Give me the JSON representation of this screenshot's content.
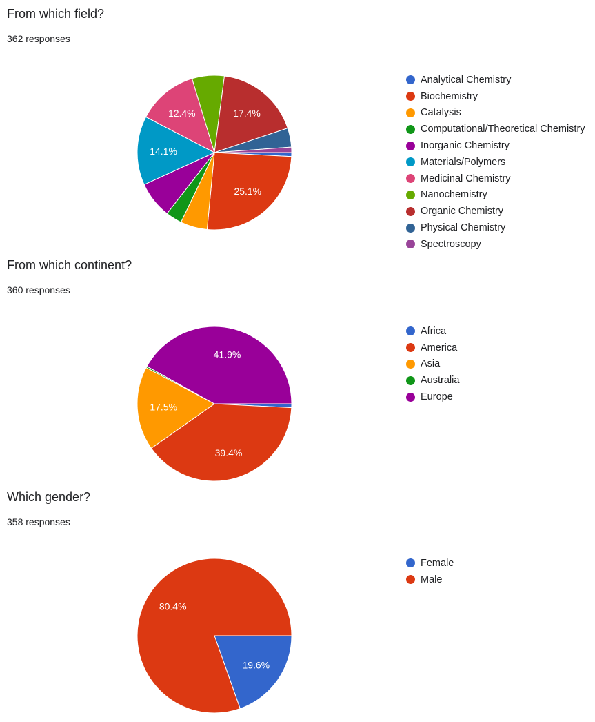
{
  "chart_data": [
    {
      "type": "pie",
      "title": "From which field?",
      "subtitle": "362 responses",
      "legend_position": "right",
      "series": [
        {
          "name": "Analytical Chemistry",
          "value": 0.8,
          "color": "#3366cc"
        },
        {
          "name": "Biochemistry",
          "value": 25.1,
          "label": "25.1%",
          "color": "#dc3912"
        },
        {
          "name": "Catalysis",
          "value": 5.5,
          "color": "#ff9900"
        },
        {
          "name": "Computational/Theoretical Chemistry",
          "value": 3.3,
          "color": "#109618"
        },
        {
          "name": "Inorganic Chemistry",
          "value": 7.5,
          "color": "#990099"
        },
        {
          "name": "Materials/Polymers",
          "value": 14.1,
          "label": "14.1%",
          "color": "#0099c6"
        },
        {
          "name": "Medicinal Chemistry",
          "value": 12.4,
          "label": "12.4%",
          "color": "#dd4477"
        },
        {
          "name": "Nanochemistry",
          "value": 6.6,
          "color": "#66aa00"
        },
        {
          "name": "Organic Chemistry",
          "value": 17.4,
          "label": "17.4%",
          "color": "#b82e2e"
        },
        {
          "name": "Physical Chemistry",
          "value": 3.9,
          "color": "#316395"
        },
        {
          "name": "Spectroscopy",
          "value": 1.1,
          "color": "#994499"
        }
      ]
    },
    {
      "type": "pie",
      "title": "From which continent?",
      "subtitle": "360 responses",
      "legend_position": "right",
      "series": [
        {
          "name": "Africa",
          "value": 0.8,
          "color": "#3366cc"
        },
        {
          "name": "America",
          "value": 39.4,
          "label": "39.4%",
          "color": "#dc3912"
        },
        {
          "name": "Asia",
          "value": 17.5,
          "label": "17.5%",
          "color": "#ff9900"
        },
        {
          "name": "Australia",
          "value": 0.3,
          "color": "#109618"
        },
        {
          "name": "Europe",
          "value": 41.9,
          "label": "41.9%",
          "color": "#990099"
        }
      ]
    },
    {
      "type": "pie",
      "title": "Which gender?",
      "subtitle": "358 responses",
      "legend_position": "right",
      "series": [
        {
          "name": "Female",
          "value": 19.6,
          "label": "19.6%",
          "color": "#3366cc"
        },
        {
          "name": "Male",
          "value": 80.4,
          "label": "80.4%",
          "color": "#dc3912"
        }
      ]
    }
  ]
}
